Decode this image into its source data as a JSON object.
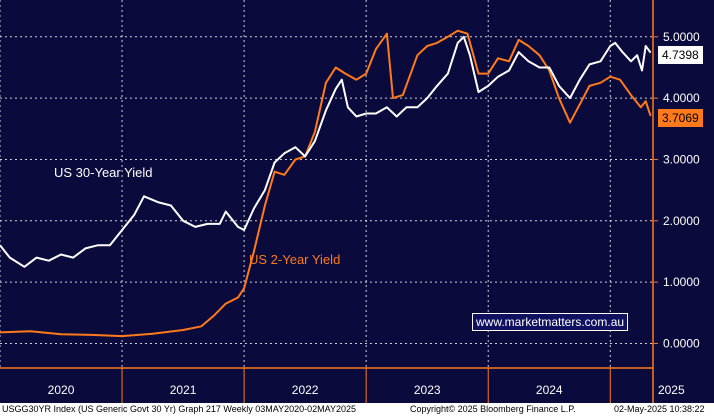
{
  "chart_data": {
    "type": "line",
    "x_ticks": [
      "2020",
      "2021",
      "2022",
      "2023",
      "2024",
      "2025"
    ],
    "y_ticks": [
      "5.0000",
      "4.0000",
      "3.0000",
      "2.0000",
      "1.0000",
      "0.0000"
    ],
    "ylim": [
      -0.4,
      5.6
    ],
    "xlim": [
      2020.0,
      2025.35
    ],
    "grid": true,
    "series": [
      {
        "name": "US 30-Year Yield",
        "color": "#ffffff",
        "last_value": "4.7398",
        "points": [
          [
            2020.0,
            1.6
          ],
          [
            2020.08,
            1.4
          ],
          [
            2020.2,
            1.25
          ],
          [
            2020.3,
            1.4
          ],
          [
            2020.4,
            1.35
          ],
          [
            2020.5,
            1.45
          ],
          [
            2020.6,
            1.4
          ],
          [
            2020.7,
            1.55
          ],
          [
            2020.8,
            1.6
          ],
          [
            2020.9,
            1.6
          ],
          [
            2021.0,
            1.85
          ],
          [
            2021.1,
            2.1
          ],
          [
            2021.18,
            2.4
          ],
          [
            2021.3,
            2.3
          ],
          [
            2021.4,
            2.25
          ],
          [
            2021.5,
            2.0
          ],
          [
            2021.6,
            1.9
          ],
          [
            2021.7,
            1.95
          ],
          [
            2021.8,
            1.95
          ],
          [
            2021.85,
            2.15
          ],
          [
            2021.95,
            1.9
          ],
          [
            2022.0,
            1.85
          ],
          [
            2022.08,
            2.2
          ],
          [
            2022.17,
            2.5
          ],
          [
            2022.25,
            2.95
          ],
          [
            2022.33,
            3.1
          ],
          [
            2022.42,
            3.2
          ],
          [
            2022.5,
            3.05
          ],
          [
            2022.58,
            3.3
          ],
          [
            2022.67,
            3.8
          ],
          [
            2022.75,
            4.15
          ],
          [
            2022.8,
            4.3
          ],
          [
            2022.85,
            3.85
          ],
          [
            2022.92,
            3.7
          ],
          [
            2023.0,
            3.75
          ],
          [
            2023.08,
            3.75
          ],
          [
            2023.17,
            3.85
          ],
          [
            2023.25,
            3.7
          ],
          [
            2023.33,
            3.85
          ],
          [
            2023.42,
            3.85
          ],
          [
            2023.5,
            4.0
          ],
          [
            2023.58,
            4.2
          ],
          [
            2023.67,
            4.4
          ],
          [
            2023.75,
            4.9
          ],
          [
            2023.8,
            5.0
          ],
          [
            2023.85,
            4.7
          ],
          [
            2023.92,
            4.1
          ],
          [
            2024.0,
            4.2
          ],
          [
            2024.08,
            4.35
          ],
          [
            2024.17,
            4.45
          ],
          [
            2024.25,
            4.75
          ],
          [
            2024.33,
            4.6
          ],
          [
            2024.42,
            4.5
          ],
          [
            2024.5,
            4.5
          ],
          [
            2024.58,
            4.2
          ],
          [
            2024.67,
            4.0
          ],
          [
            2024.75,
            4.3
          ],
          [
            2024.83,
            4.55
          ],
          [
            2024.92,
            4.6
          ],
          [
            2025.0,
            4.85
          ],
          [
            2025.04,
            4.9
          ],
          [
            2025.1,
            4.75
          ],
          [
            2025.17,
            4.6
          ],
          [
            2025.22,
            4.7
          ],
          [
            2025.26,
            4.45
          ],
          [
            2025.29,
            4.85
          ],
          [
            2025.33,
            4.74
          ]
        ]
      },
      {
        "name": "US 2-Year Yield",
        "color": "#ff7a1a",
        "last_value": "3.7069",
        "points": [
          [
            2020.0,
            0.18
          ],
          [
            2020.25,
            0.2
          ],
          [
            2020.5,
            0.15
          ],
          [
            2020.75,
            0.14
          ],
          [
            2021.0,
            0.12
          ],
          [
            2021.25,
            0.16
          ],
          [
            2021.5,
            0.22
          ],
          [
            2021.65,
            0.28
          ],
          [
            2021.75,
            0.45
          ],
          [
            2021.85,
            0.65
          ],
          [
            2021.95,
            0.75
          ],
          [
            2022.0,
            0.9
          ],
          [
            2022.08,
            1.5
          ],
          [
            2022.17,
            2.25
          ],
          [
            2022.25,
            2.8
          ],
          [
            2022.33,
            2.75
          ],
          [
            2022.42,
            3.0
          ],
          [
            2022.5,
            3.05
          ],
          [
            2022.58,
            3.45
          ],
          [
            2022.67,
            4.25
          ],
          [
            2022.75,
            4.5
          ],
          [
            2022.83,
            4.4
          ],
          [
            2022.92,
            4.3
          ],
          [
            2023.0,
            4.4
          ],
          [
            2023.08,
            4.8
          ],
          [
            2023.17,
            5.05
          ],
          [
            2023.22,
            4.0
          ],
          [
            2023.3,
            4.05
          ],
          [
            2023.42,
            4.7
          ],
          [
            2023.5,
            4.85
          ],
          [
            2023.58,
            4.9
          ],
          [
            2023.67,
            5.0
          ],
          [
            2023.75,
            5.1
          ],
          [
            2023.83,
            5.05
          ],
          [
            2023.92,
            4.4
          ],
          [
            2024.0,
            4.4
          ],
          [
            2024.08,
            4.65
          ],
          [
            2024.17,
            4.6
          ],
          [
            2024.25,
            4.95
          ],
          [
            2024.33,
            4.85
          ],
          [
            2024.42,
            4.7
          ],
          [
            2024.5,
            4.45
          ],
          [
            2024.58,
            4.0
          ],
          [
            2024.67,
            3.6
          ],
          [
            2024.75,
            3.9
          ],
          [
            2024.83,
            4.2
          ],
          [
            2024.92,
            4.25
          ],
          [
            2025.0,
            4.35
          ],
          [
            2025.08,
            4.3
          ],
          [
            2025.17,
            4.05
          ],
          [
            2025.25,
            3.85
          ],
          [
            2025.29,
            3.95
          ],
          [
            2025.33,
            3.71
          ]
        ]
      }
    ]
  },
  "labels": {
    "series_30y": "US 30-Year Yield",
    "series_2y": "US 2-Year Yield",
    "watermark": "www.marketmatters.com.au"
  },
  "footer": {
    "left": "USGG30YR Index (US Generic Govt 30 Yr) Graph 217  Weekly 03MAY2020-02MAY2025",
    "middle": "Copyright© 2025 Bloomberg Finance L.P.",
    "right": "02-May-2025 10:38:22"
  }
}
